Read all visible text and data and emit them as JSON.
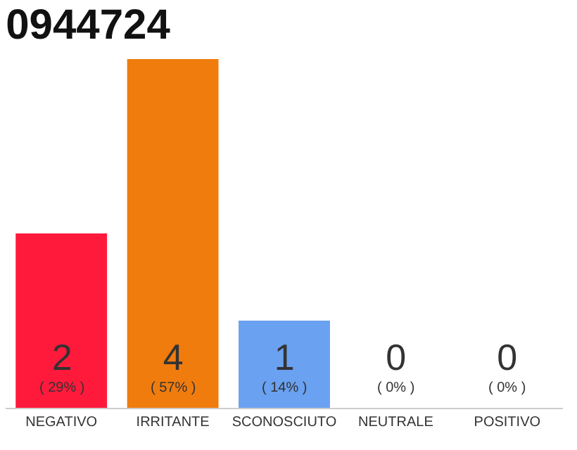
{
  "chart_data": {
    "type": "bar",
    "title": "0944724",
    "categories": [
      "NEGATIVO",
      "IRRITANTE",
      "SCONOSCIUTO",
      "NEUTRALE",
      "POSITIVO"
    ],
    "values": [
      2,
      4,
      1,
      0,
      0
    ],
    "colors": [
      "#ff1a3c",
      "#f07c0e",
      "#6aa1f0",
      "#d0d0d0",
      "#d0d0d0"
    ],
    "value_labels": [
      "2\n( 29% )",
      "4\n( 57% )",
      "1\n( 14% )",
      "0\n( 0% )",
      "0\n( 0% )"
    ],
    "ylim": [
      0,
      4
    ],
    "tick_labels": "x"
  }
}
